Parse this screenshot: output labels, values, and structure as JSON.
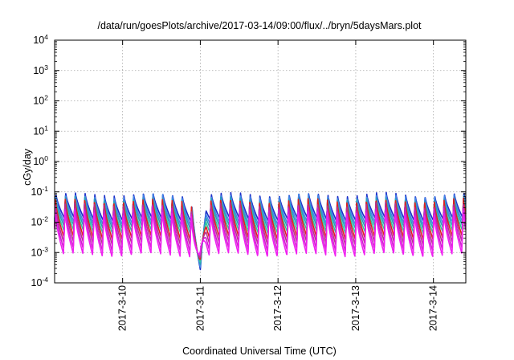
{
  "chart_data": {
    "type": "line",
    "title": "/data/run/goesPlots/archive/2017-03-14/09:00/flux/../bryn/5daysMars.plot",
    "xlabel": "Coordinated Universal Time (UTC)",
    "ylabel": "cGy/day",
    "yscale": "log",
    "ylim": [
      0.0001,
      10000
    ],
    "y_ticks": [
      {
        "base": "10",
        "exp": "-4",
        "value": 0.0001
      },
      {
        "base": "10",
        "exp": "-3",
        "value": 0.001
      },
      {
        "base": "10",
        "exp": "-2",
        "value": 0.01
      },
      {
        "base": "10",
        "exp": "-1",
        "value": 0.1
      },
      {
        "base": "10",
        "exp": "0",
        "value": 1
      },
      {
        "base": "10",
        "exp": "1",
        "value": 10
      },
      {
        "base": "10",
        "exp": "2",
        "value": 100
      },
      {
        "base": "10",
        "exp": "3",
        "value": 1000
      },
      {
        "base": "10",
        "exp": "4",
        "value": 10000
      }
    ],
    "xlim": [
      "2017-03-09T03:00",
      "2017-03-14T10:00"
    ],
    "x_ticks": [
      {
        "label": "2017-3-10",
        "value": "2017-03-10T00:00"
      },
      {
        "label": "2017-3-11",
        "value": "2017-03-11T00:00"
      },
      {
        "label": "2017-3-12",
        "value": "2017-03-12T00:00"
      },
      {
        "label": "2017-3-13",
        "value": "2017-03-13T00:00"
      },
      {
        "label": "2017-3-14",
        "value": "2017-03-14T00:00"
      }
    ],
    "grid": true,
    "legend": "none",
    "period_hours": 3,
    "dip": {
      "time": "2017-03-11T00:00",
      "min": 0.00018
    },
    "series": [
      {
        "color": "#1e30c8",
        "peak": 0.085,
        "trough": 0.0125
      },
      {
        "color": "#4488e8",
        "peak": 0.075,
        "trough": 0.009
      },
      {
        "color": "#2aa0b8",
        "peak": 0.062,
        "trough": 0.0068
      },
      {
        "color": "#30c8a0",
        "peak": 0.05,
        "trough": 0.0048
      },
      {
        "color": "#e02020",
        "peak": 0.055,
        "trough": 0.003
      },
      {
        "color": "#b83090",
        "peak": 0.04,
        "trough": 0.002
      },
      {
        "color": "#d020d0",
        "peak": 0.03,
        "trough": 0.00125
      },
      {
        "color": "#f020f0",
        "peak": 0.022,
        "trough": 0.00082
      }
    ]
  }
}
